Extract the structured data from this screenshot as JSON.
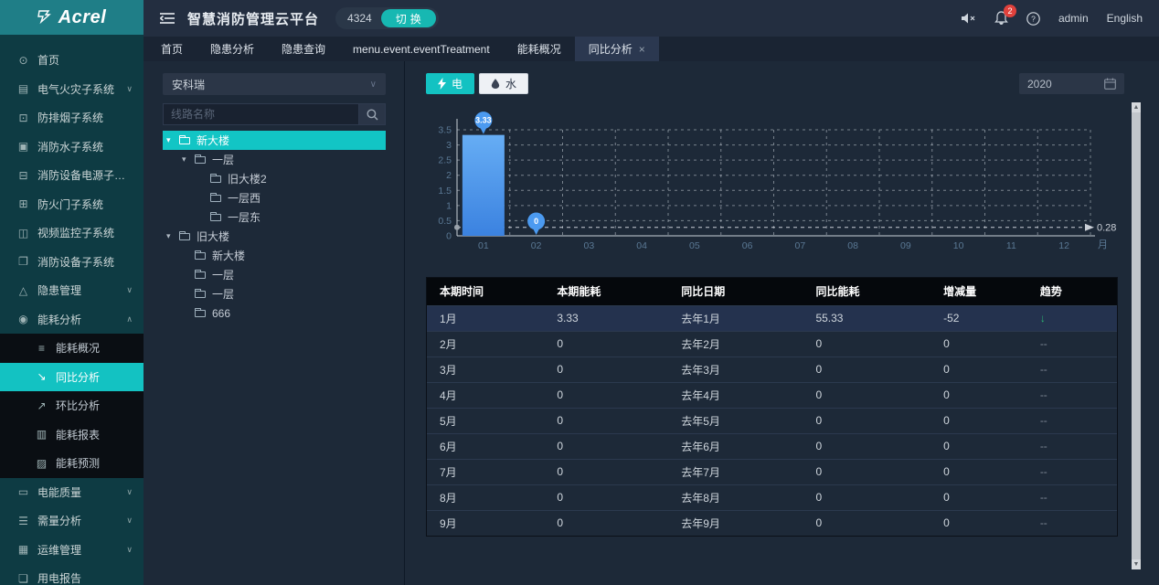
{
  "brand": {
    "logo_text": "Acrel"
  },
  "header": {
    "title": "智慧消防管理云平台",
    "badge": "4324",
    "switch_label": "切换",
    "bell_count": "2",
    "user": "admin",
    "language": "English"
  },
  "tabs": [
    {
      "label": "首页"
    },
    {
      "label": "隐患分析"
    },
    {
      "label": "隐患查询"
    },
    {
      "label": "menu.event.eventTreatment"
    },
    {
      "label": "能耗概况"
    },
    {
      "label": "同比分析",
      "active": true,
      "closable": true
    }
  ],
  "sidebar": {
    "items": [
      {
        "icon": "home",
        "label": "首页"
      },
      {
        "icon": "chart",
        "label": "电气火灾子系统",
        "chevron": "down"
      },
      {
        "icon": "lock",
        "label": "防排烟子系统"
      },
      {
        "icon": "monitor",
        "label": "消防水子系统"
      },
      {
        "icon": "power",
        "label": "消防设备电源子系统"
      },
      {
        "icon": "door",
        "label": "防火门子系统"
      },
      {
        "icon": "video",
        "label": "视频监控子系统"
      },
      {
        "icon": "device",
        "label": "消防设备子系统"
      },
      {
        "icon": "warning",
        "label": "隐患管理",
        "chevron": "down"
      },
      {
        "icon": "energy",
        "label": "能耗分析",
        "chevron": "up",
        "open": true,
        "sub": [
          {
            "icon": "list",
            "label": "能耗概况"
          },
          {
            "icon": "trend-down",
            "label": "同比分析",
            "active": true
          },
          {
            "icon": "trend-up",
            "label": "环比分析"
          },
          {
            "icon": "bar",
            "label": "能耗报表"
          },
          {
            "icon": "forecast",
            "label": "能耗预测"
          }
        ]
      },
      {
        "icon": "quality",
        "label": "电能质量",
        "chevron": "down"
      },
      {
        "icon": "demand",
        "label": "需量分析",
        "chevron": "down"
      },
      {
        "icon": "ops",
        "label": "运维管理",
        "chevron": "down"
      },
      {
        "icon": "report",
        "label": "用电报告"
      }
    ]
  },
  "tree_panel": {
    "company": "安科瑞",
    "search_placeholder": "线路名称",
    "nodes": [
      {
        "label": "新大楼",
        "level": 0,
        "arrow": true,
        "selected": true
      },
      {
        "label": "一层",
        "level": 1,
        "arrow": true
      },
      {
        "label": "旧大楼2",
        "level": 2
      },
      {
        "label": "一层西",
        "level": 2
      },
      {
        "label": "一层东",
        "level": 2
      },
      {
        "label": "旧大楼",
        "level": 0,
        "arrow": true
      },
      {
        "label": "新大楼",
        "level": 1
      },
      {
        "label": "一层",
        "level": 1
      },
      {
        "label": "一层",
        "level": 1
      },
      {
        "label": "666",
        "level": 1
      }
    ]
  },
  "toolbar": {
    "electric_label": "电",
    "water_label": "水",
    "year": "2020"
  },
  "chart_data": {
    "type": "bar",
    "categories": [
      "01",
      "02",
      "03",
      "04",
      "05",
      "06",
      "07",
      "08",
      "09",
      "10",
      "11",
      "12"
    ],
    "values": [
      3.33,
      0,
      null,
      null,
      null,
      null,
      null,
      null,
      null,
      null,
      null,
      null
    ],
    "ylim": [
      0,
      3.5
    ],
    "ytick": 0.5,
    "x_unit": "月",
    "markline": {
      "value": 0.28,
      "label": "0.28"
    },
    "grid": "dashed",
    "legend": "none",
    "bar_color_top": "#66adf4",
    "bar_color_bottom": "#3b82e0",
    "point_color": "#4b9af0"
  },
  "table": {
    "headers": [
      "本期时间",
      "本期能耗",
      "同比日期",
      "同比能耗",
      "增减量",
      "趋势"
    ],
    "rows": [
      [
        "1月",
        "3.33",
        "去年1月",
        "55.33",
        "-52",
        "↓"
      ],
      [
        "2月",
        "0",
        "去年2月",
        "0",
        "0",
        "--"
      ],
      [
        "3月",
        "0",
        "去年3月",
        "0",
        "0",
        "--"
      ],
      [
        "4月",
        "0",
        "去年4月",
        "0",
        "0",
        "--"
      ],
      [
        "5月",
        "0",
        "去年5月",
        "0",
        "0",
        "--"
      ],
      [
        "6月",
        "0",
        "去年6月",
        "0",
        "0",
        "--"
      ],
      [
        "7月",
        "0",
        "去年7月",
        "0",
        "0",
        "--"
      ],
      [
        "8月",
        "0",
        "去年8月",
        "0",
        "0",
        "--"
      ],
      [
        "9月",
        "0",
        "去年9月",
        "0",
        "0",
        "--"
      ]
    ]
  },
  "colors": {
    "accent": "#13c2c2",
    "bar_blue": "#4b9af0",
    "trend_down": "#2bb673"
  }
}
